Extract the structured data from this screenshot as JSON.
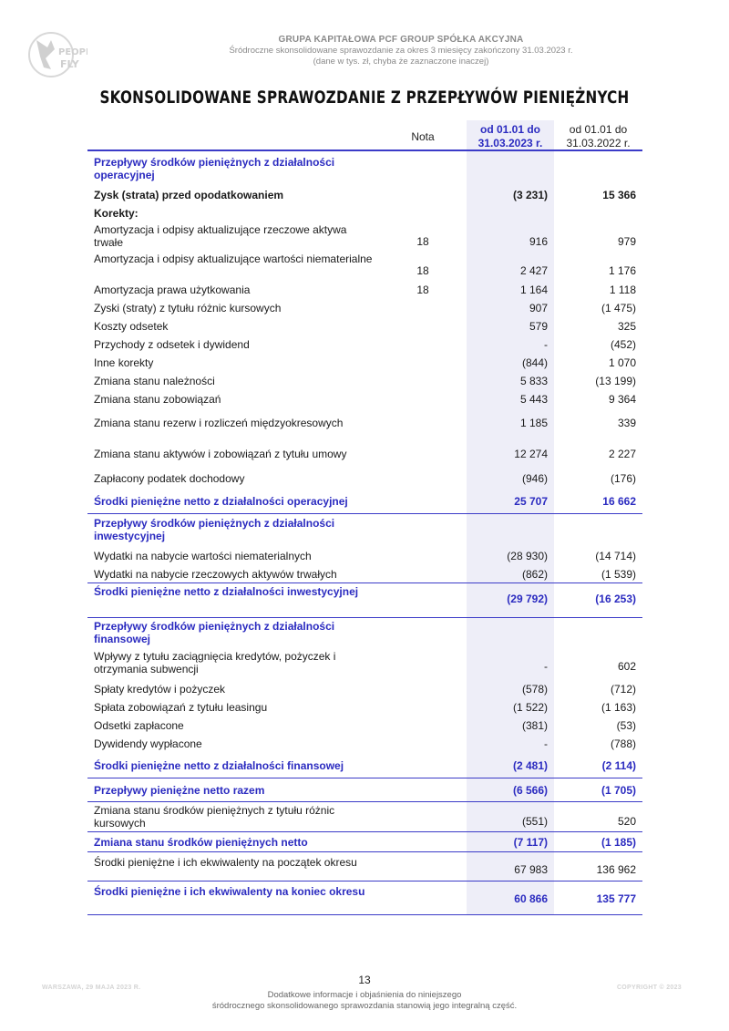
{
  "header": {
    "company": "GRUPA KAPITAŁOWA PCF GROUP SPÓŁKA AKCYJNA",
    "subtitle": "Śródroczne skonsolidowane sprawozdanie za okres 3 miesięcy zakończony 31.03.2023 r.",
    "units": "(dane w tys. zł, chyba że zaznaczone inaczej)",
    "logo_icon": "people-can-fly-logo",
    "logo_text": "PEOPLE CAN FLY"
  },
  "title": "SKONSOLIDOWANE SPRAWOZDANIE Z PRZEPŁYWÓW PIENIĘŻNYCH",
  "columns": {
    "nota": "Nota",
    "col1_line1": "od 01.01 do",
    "col1_line2": "31.03.2023 r.",
    "col2_line1": "od 01.01 do",
    "col2_line2": "31.03.2022 r."
  },
  "rows": [
    {
      "label": "Przepływy środków pieniężnych z działalności operacyjnej",
      "nota": "",
      "v1": "",
      "v2": ""
    },
    {
      "label": "Zysk (strata) przed opodatkowaniem",
      "nota": "",
      "v1": "(3 231)",
      "v2": "15 366"
    },
    {
      "label": "Korekty:",
      "nota": "",
      "v1": "",
      "v2": ""
    },
    {
      "label": "Amortyzacja i odpisy aktualizujące rzeczowe aktywa trwałe",
      "nota": "18",
      "v1": "916",
      "v2": "979"
    },
    {
      "label": "Amortyzacja i odpisy aktualizujące wartości niematerialne",
      "nota": "18",
      "v1": "2 427",
      "v2": "1 176"
    },
    {
      "label": "Amortyzacja prawa użytkowania",
      "nota": "18",
      "v1": "1 164",
      "v2": "1 118"
    },
    {
      "label": "Zyski (straty) z tytułu różnic kursowych",
      "nota": "",
      "v1": "907",
      "v2": "(1 475)"
    },
    {
      "label": "Koszty odsetek",
      "nota": "",
      "v1": "579",
      "v2": "325"
    },
    {
      "label": "Przychody z odsetek i dywidend",
      "nota": "",
      "v1": "-",
      "v2": "(452)"
    },
    {
      "label": "Inne korekty",
      "nota": "",
      "v1": "(844)",
      "v2": "1 070"
    },
    {
      "label": "Zmiana stanu należności",
      "nota": "",
      "v1": "5 833",
      "v2": "(13 199)"
    },
    {
      "label": "Zmiana stanu zobowiązań",
      "nota": "",
      "v1": "5 443",
      "v2": "9 364"
    },
    {
      "label": "Zmiana stanu rezerw i rozliczeń międzyokresowych",
      "nota": "",
      "v1": "1 185",
      "v2": "339"
    },
    {
      "label": "Zmiana stanu aktywów i zobowiązań z tytułu umowy",
      "nota": "",
      "v1": "12 274",
      "v2": "2 227"
    },
    {
      "label": "Zapłacony podatek dochodowy",
      "nota": "",
      "v1": "(946)",
      "v2": "(176)"
    },
    {
      "label": "Środki pieniężne netto z działalności operacyjnej",
      "nota": "",
      "v1": "25 707",
      "v2": "16 662"
    },
    {
      "label": "Przepływy środków pieniężnych z działalności inwestycyjnej",
      "nota": "",
      "v1": "",
      "v2": ""
    },
    {
      "label": "Wydatki na nabycie wartości niematerialnych",
      "nota": "",
      "v1": "(28 930)",
      "v2": "(14 714)"
    },
    {
      "label": "Wydatki na nabycie rzeczowych aktywów trwałych",
      "nota": "",
      "v1": "(862)",
      "v2": "(1 539)"
    },
    {
      "label": "Środki pieniężne netto z działalności inwestycyjnej",
      "nota": "",
      "v1": "(29 792)",
      "v2": "(16 253)"
    },
    {
      "label": "Przepływy środków pieniężnych z działalności finansowej",
      "nota": "",
      "v1": "",
      "v2": ""
    },
    {
      "label": "Wpływy z tytułu zaciągnięcia kredytów, pożyczek i otrzymania subwencji",
      "nota": "",
      "v1": "-",
      "v2": "602"
    },
    {
      "label": "Spłaty kredytów i pożyczek",
      "nota": "",
      "v1": "(578)",
      "v2": "(712)"
    },
    {
      "label": "Spłata zobowiązań z tytułu leasingu",
      "nota": "",
      "v1": "(1 522)",
      "v2": "(1 163)"
    },
    {
      "label": "Odsetki zapłacone",
      "nota": "",
      "v1": "(381)",
      "v2": "(53)"
    },
    {
      "label": "Dywidendy wypłacone",
      "nota": "",
      "v1": "-",
      "v2": "(788)"
    },
    {
      "label": "Środki pieniężne netto z działalności finansowej",
      "nota": "",
      "v1": "(2 481)",
      "v2": "(2 114)"
    },
    {
      "label": "Przepływy pieniężne netto razem",
      "nota": "",
      "v1": "(6 566)",
      "v2": "(1 705)"
    },
    {
      "label": "Zmiana stanu środków pieniężnych z tytułu różnic kursowych",
      "nota": "",
      "v1": "(551)",
      "v2": "520"
    },
    {
      "label": "Zmiana stanu środków pieniężnych netto",
      "nota": "",
      "v1": "(7 117)",
      "v2": "(1 185)"
    },
    {
      "label": "Środki pieniężne i ich ekwiwalenty na początek okresu",
      "nota": "",
      "v1": "67 983",
      "v2": "136 962"
    },
    {
      "label": "Środki pieniężne i ich ekwiwalenty na koniec okresu",
      "nota": "",
      "v1": "60 866",
      "v2": "135 777"
    }
  ],
  "footer": {
    "page_number": "13",
    "left": "WARSZAWA, 29 MAJA 2023 R.",
    "right": "COPYRIGHT © 2023",
    "note_line1": "Dodatkowe informacje i objaśnienia do niniejszego",
    "note_line2": "śródrocznego skonsolidowanego sprawozdania  stanowią jego integralną część."
  }
}
